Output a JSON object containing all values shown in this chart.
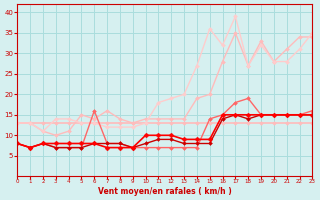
{
  "xlabel": "Vent moyen/en rafales ( km/h )",
  "xlim": [
    0,
    23
  ],
  "ylim": [
    0,
    42
  ],
  "yticks": [
    5,
    10,
    15,
    20,
    25,
    30,
    35,
    40
  ],
  "xticks": [
    0,
    1,
    2,
    3,
    4,
    5,
    6,
    7,
    8,
    9,
    10,
    11,
    12,
    13,
    14,
    15,
    16,
    17,
    18,
    19,
    20,
    21,
    22,
    23
  ],
  "bg_color": "#d6f0f0",
  "grid_color": "#aadddd",
  "series": [
    {
      "x": [
        0,
        1,
        2,
        3,
        4,
        5,
        6,
        7,
        8,
        9,
        10,
        11,
        12,
        13,
        14,
        15,
        16,
        17,
        18,
        19,
        20,
        21,
        22,
        23
      ],
      "y": [
        13,
        13,
        13,
        13,
        13,
        13,
        13,
        13,
        13,
        13,
        13,
        13,
        13,
        13,
        13,
        13,
        13,
        13,
        13,
        13,
        13,
        13,
        13,
        13
      ],
      "color": "#ffbbbb",
      "lw": 1.2,
      "marker": "D",
      "ms": 2
    },
    {
      "x": [
        0,
        1,
        2,
        3,
        4,
        5,
        6,
        7,
        8,
        9,
        10,
        11,
        12,
        13,
        14,
        15,
        16,
        17,
        18,
        19,
        20,
        21,
        22,
        23
      ],
      "y": [
        13,
        13,
        11,
        10,
        11,
        15,
        14,
        16,
        14,
        13,
        14,
        14,
        14,
        14,
        19,
        20,
        28,
        35,
        27,
        33,
        28,
        31,
        34,
        34
      ],
      "color": "#ffbbbb",
      "lw": 1.0,
      "marker": "D",
      "ms": 2
    },
    {
      "x": [
        0,
        1,
        2,
        3,
        4,
        5,
        6,
        7,
        8,
        9,
        10,
        11,
        12,
        13,
        14,
        15,
        16,
        17,
        18,
        19,
        20,
        21,
        22,
        23
      ],
      "y": [
        13,
        13,
        11,
        14,
        14,
        13,
        13,
        12,
        12,
        12,
        13,
        18,
        19,
        20,
        27,
        36,
        32,
        39,
        27,
        32,
        28,
        28,
        31,
        35
      ],
      "color": "#ffcccc",
      "lw": 1.0,
      "marker": "D",
      "ms": 2
    },
    {
      "x": [
        0,
        1,
        2,
        3,
        4,
        5,
        6,
        7,
        8,
        9,
        10,
        11,
        12,
        13,
        14,
        15,
        16,
        17,
        18,
        19,
        20,
        21,
        22,
        23
      ],
      "y": [
        8,
        7,
        8,
        7,
        7,
        7,
        16,
        8,
        8,
        7,
        7,
        7,
        7,
        7,
        7,
        14,
        15,
        18,
        19,
        15,
        15,
        15,
        15,
        16
      ],
      "color": "#ff6666",
      "lw": 1.0,
      "marker": "D",
      "ms": 2
    },
    {
      "x": [
        0,
        1,
        2,
        3,
        4,
        5,
        6,
        7,
        8,
        9,
        10,
        11,
        12,
        13,
        14,
        15,
        16,
        17,
        18,
        19,
        20,
        21,
        22,
        23
      ],
      "y": [
        8,
        7,
        8,
        7,
        7,
        7,
        8,
        8,
        8,
        7,
        8,
        9,
        9,
        8,
        8,
        8,
        14,
        15,
        14,
        15,
        15,
        15,
        15,
        15
      ],
      "color": "#cc0000",
      "lw": 1.0,
      "marker": "D",
      "ms": 2
    },
    {
      "x": [
        0,
        1,
        2,
        3,
        4,
        5,
        6,
        7,
        8,
        9,
        10,
        11,
        12,
        13,
        14,
        15,
        16,
        17,
        18,
        19,
        20,
        21,
        22,
        23
      ],
      "y": [
        8,
        7,
        8,
        8,
        8,
        8,
        8,
        7,
        7,
        7,
        10,
        10,
        10,
        9,
        9,
        9,
        15,
        15,
        15,
        15,
        15,
        15,
        15,
        15
      ],
      "color": "#ff0000",
      "lw": 1.2,
      "marker": "D",
      "ms": 2.5
    }
  ]
}
